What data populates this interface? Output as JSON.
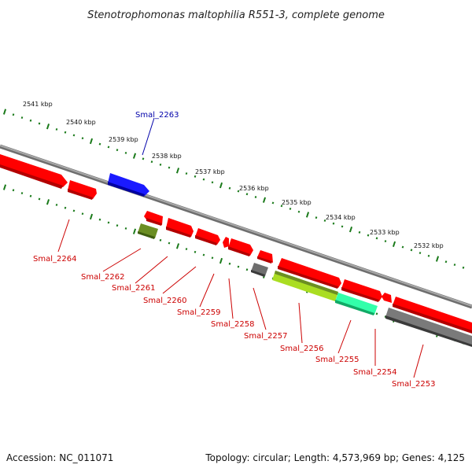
{
  "title": "Stenotrophomonas maltophilia R551-3, complete genome",
  "footer": {
    "accession": "Accession: NC_011071",
    "summary": "Topology: circular; Length: 4,573,969 bp; Genes: 4,125"
  },
  "colors": {
    "backbone": "#8c8c8c",
    "tick": "#1a7a1a",
    "gene_default": "#ff0000",
    "gene_highlight": "#0000ff",
    "label_default": "#cc0000",
    "label_highlight": "#0000aa"
  },
  "scale_labels": [
    "2541 kbp",
    "2540 kbp",
    "2539 kbp",
    "2538 kbp",
    "2537 kbp",
    "2536 kbp",
    "2535 kbp",
    "2534 kbp",
    "2533 kbp",
    "2532 kbp"
  ],
  "gene_labels": [
    "Smal_2263",
    "Smal_2264",
    "Smal_2262",
    "Smal_2261",
    "Smal_2260",
    "Smal_2259",
    "Smal_2258",
    "Smal_2257",
    "Smal_2256",
    "Smal_2255",
    "Smal_2254",
    "Smal_2253"
  ]
}
